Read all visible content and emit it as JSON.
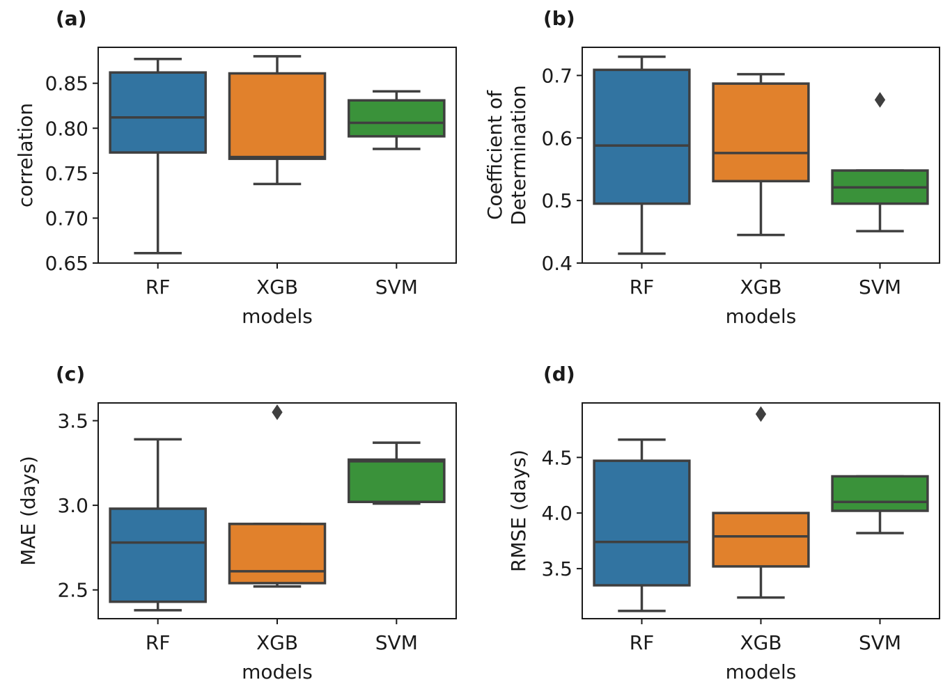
{
  "chart_data": [
    {
      "type": "box",
      "panel_label": "(a)",
      "xlabel": "models",
      "ylabel_lines": [
        "correlation"
      ],
      "categories": [
        "RF",
        "XGB",
        "SVM"
      ],
      "ylim": [
        0.65,
        0.89
      ],
      "yticks": [
        0.65,
        0.7,
        0.75,
        0.8,
        0.85
      ],
      "ytick_labels": [
        "0.65",
        "0.70",
        "0.75",
        "0.80",
        "0.85"
      ],
      "boxes": [
        {
          "category": "RF",
          "whisker_low": 0.661,
          "q1": 0.773,
          "median": 0.812,
          "q3": 0.862,
          "whisker_high": 0.877,
          "outliers": []
        },
        {
          "category": "XGB",
          "whisker_low": 0.738,
          "q1": 0.766,
          "median": 0.768,
          "q3": 0.861,
          "whisker_high": 0.88,
          "outliers": []
        },
        {
          "category": "SVM",
          "whisker_low": 0.777,
          "q1": 0.791,
          "median": 0.806,
          "q3": 0.831,
          "whisker_high": 0.841,
          "outliers": []
        }
      ]
    },
    {
      "type": "box",
      "panel_label": "(b)",
      "xlabel": "models",
      "ylabel_lines": [
        "Coefficient of",
        "Determination"
      ],
      "categories": [
        "RF",
        "XGB",
        "SVM"
      ],
      "ylim": [
        0.4,
        0.745
      ],
      "yticks": [
        0.4,
        0.5,
        0.6,
        0.7
      ],
      "ytick_labels": [
        "0.4",
        "0.5",
        "0.6",
        "0.7"
      ],
      "boxes": [
        {
          "category": "RF",
          "whisker_low": 0.415,
          "q1": 0.495,
          "median": 0.588,
          "q3": 0.709,
          "whisker_high": 0.73,
          "outliers": []
        },
        {
          "category": "XGB",
          "whisker_low": 0.445,
          "q1": 0.531,
          "median": 0.576,
          "q3": 0.687,
          "whisker_high": 0.702,
          "outliers": []
        },
        {
          "category": "SVM",
          "whisker_low": 0.451,
          "q1": 0.495,
          "median": 0.521,
          "q3": 0.548,
          "whisker_high": 0.548,
          "outliers": [
            0.661
          ]
        }
      ]
    },
    {
      "type": "box",
      "panel_label": "(c)",
      "xlabel": "models",
      "ylabel_lines": [
        "MAE (days)"
      ],
      "categories": [
        "RF",
        "XGB",
        "SVM"
      ],
      "ylim": [
        2.33,
        3.605
      ],
      "yticks": [
        2.5,
        3.0,
        3.5
      ],
      "ytick_labels": [
        "2.5",
        "3.0",
        "3.5"
      ],
      "boxes": [
        {
          "category": "RF",
          "whisker_low": 2.38,
          "q1": 2.43,
          "median": 2.78,
          "q3": 2.98,
          "whisker_high": 3.39,
          "outliers": []
        },
        {
          "category": "XGB",
          "whisker_low": 2.52,
          "q1": 2.54,
          "median": 2.61,
          "q3": 2.89,
          "whisker_high": 2.89,
          "outliers": [
            3.55
          ]
        },
        {
          "category": "SVM",
          "whisker_low": 3.01,
          "q1": 3.02,
          "median": 3.26,
          "q3": 3.27,
          "whisker_high": 3.37,
          "outliers": []
        }
      ]
    },
    {
      "type": "box",
      "panel_label": "(d)",
      "xlabel": "models",
      "ylabel_lines": [
        "RMSE (days)"
      ],
      "categories": [
        "RF",
        "XGB",
        "SVM"
      ],
      "ylim": [
        3.05,
        4.99
      ],
      "yticks": [
        3.5,
        4.0,
        4.5
      ],
      "ytick_labels": [
        "3.5",
        "4.0",
        "4.5"
      ],
      "boxes": [
        {
          "category": "RF",
          "whisker_low": 3.12,
          "q1": 3.35,
          "median": 3.74,
          "q3": 4.47,
          "whisker_high": 4.66,
          "outliers": []
        },
        {
          "category": "XGB",
          "whisker_low": 3.24,
          "q1": 3.52,
          "median": 3.79,
          "q3": 4.0,
          "whisker_high": 4.0,
          "outliers": [
            4.89
          ]
        },
        {
          "category": "SVM",
          "whisker_low": 3.82,
          "q1": 4.02,
          "median": 4.1,
          "q3": 4.33,
          "whisker_high": 4.33,
          "outliers": []
        }
      ]
    }
  ],
  "colors": {
    "RF": "#3274a1",
    "XGB": "#e1812c",
    "SVM": "#3a923a",
    "line": "#3f3f3f",
    "axis": "#1a1a1a"
  }
}
